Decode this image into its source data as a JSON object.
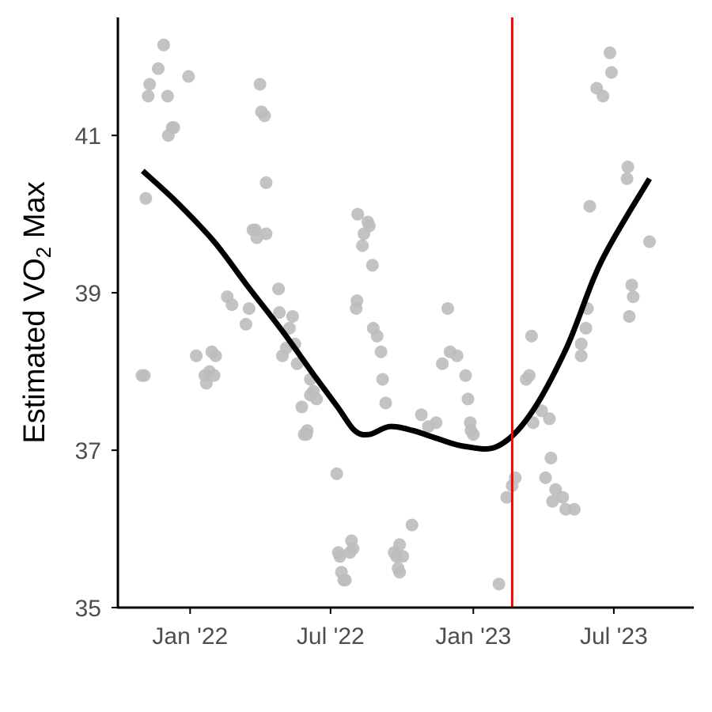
{
  "chart_data": {
    "type": "scatter",
    "title": "",
    "xlabel": "",
    "ylabel": "Estimated VO₂ Max",
    "ylabel_parts": {
      "main": "Estimated VO",
      "sub": "2",
      "tail": " Max"
    },
    "x_type": "date",
    "xlim": [
      "2021-10-01",
      "2023-10-10"
    ],
    "ylim": [
      35,
      42.5
    ],
    "x_ticks": [
      {
        "label": "Jan '22",
        "date": "2022-01-01"
      },
      {
        "label": "Jul '22",
        "date": "2022-07-01"
      },
      {
        "label": "Jan '23",
        "date": "2023-01-01"
      },
      {
        "label": "Jul '23",
        "date": "2023-07-01"
      }
    ],
    "y_ticks": [
      35,
      37,
      39,
      41
    ],
    "grid": false,
    "legend": "none",
    "colors": {
      "points": "#bdbdbd",
      "trend": "#000000",
      "marker": "#ff0000"
    },
    "vertical_line": {
      "date": "2023-02-20"
    },
    "series": [
      {
        "type": "scatter",
        "points": [
          [
            "2021-10-31",
            37.95
          ],
          [
            "2021-11-03",
            37.95
          ],
          [
            "2021-11-05",
            40.2
          ],
          [
            "2021-11-08",
            41.5
          ],
          [
            "2021-11-10",
            41.65
          ],
          [
            "2021-11-21",
            41.85
          ],
          [
            "2021-11-28",
            42.15
          ],
          [
            "2021-12-03",
            41.5
          ],
          [
            "2021-12-04",
            41.0
          ],
          [
            "2021-12-09",
            41.1
          ],
          [
            "2021-12-11",
            41.1
          ],
          [
            "2021-12-30",
            41.75
          ],
          [
            "2022-01-09",
            38.2
          ],
          [
            "2022-01-20",
            37.95
          ],
          [
            "2022-01-22",
            37.85
          ],
          [
            "2022-01-26",
            38.0
          ],
          [
            "2022-01-29",
            38.25
          ],
          [
            "2022-02-01",
            37.95
          ],
          [
            "2022-02-03",
            38.2
          ],
          [
            "2022-02-18",
            38.95
          ],
          [
            "2022-02-24",
            38.85
          ],
          [
            "2022-03-14",
            38.6
          ],
          [
            "2022-03-18",
            38.8
          ],
          [
            "2022-03-23",
            39.8
          ],
          [
            "2022-03-26",
            39.8
          ],
          [
            "2022-03-28",
            39.7
          ],
          [
            "2022-04-01",
            41.65
          ],
          [
            "2022-04-03",
            41.3
          ],
          [
            "2022-04-07",
            41.25
          ],
          [
            "2022-04-09",
            40.4
          ],
          [
            "2022-04-09",
            39.75
          ],
          [
            "2022-04-25",
            39.05
          ],
          [
            "2022-04-26",
            38.75
          ],
          [
            "2022-04-30",
            38.2
          ],
          [
            "2022-05-05",
            38.3
          ],
          [
            "2022-05-09",
            38.55
          ],
          [
            "2022-05-13",
            38.7
          ],
          [
            "2022-05-16",
            38.35
          ],
          [
            "2022-05-19",
            38.1
          ],
          [
            "2022-05-25",
            37.55
          ],
          [
            "2022-05-28",
            37.2
          ],
          [
            "2022-05-31",
            37.2
          ],
          [
            "2022-06-01",
            37.25
          ],
          [
            "2022-06-05",
            37.9
          ],
          [
            "2022-06-05",
            37.7
          ],
          [
            "2022-06-09",
            37.75
          ],
          [
            "2022-06-13",
            37.65
          ],
          [
            "2022-07-09",
            36.7
          ],
          [
            "2022-07-11",
            35.7
          ],
          [
            "2022-07-13",
            35.65
          ],
          [
            "2022-07-15",
            35.45
          ],
          [
            "2022-07-18",
            35.35
          ],
          [
            "2022-07-20",
            35.35
          ],
          [
            "2022-07-26",
            35.7
          ],
          [
            "2022-07-28",
            35.85
          ],
          [
            "2022-07-30",
            35.75
          ],
          [
            "2022-08-03",
            38.8
          ],
          [
            "2022-08-04",
            38.9
          ],
          [
            "2022-08-05",
            40.0
          ],
          [
            "2022-08-11",
            39.6
          ],
          [
            "2022-08-13",
            39.75
          ],
          [
            "2022-08-18",
            39.9
          ],
          [
            "2022-08-20",
            39.85
          ],
          [
            "2022-08-24",
            39.35
          ],
          [
            "2022-08-25",
            38.55
          ],
          [
            "2022-08-30",
            38.45
          ],
          [
            "2022-09-04",
            38.25
          ],
          [
            "2022-09-06",
            37.9
          ],
          [
            "2022-09-10",
            37.6
          ],
          [
            "2022-09-21",
            35.7
          ],
          [
            "2022-09-24",
            35.65
          ],
          [
            "2022-09-28",
            35.8
          ],
          [
            "2022-09-28",
            35.45
          ],
          [
            "2022-10-02",
            35.65
          ],
          [
            "2022-09-26",
            35.5
          ],
          [
            "2022-10-14",
            36.05
          ],
          [
            "2022-10-26",
            37.45
          ],
          [
            "2022-11-04",
            37.3
          ],
          [
            "2022-11-14",
            37.35
          ],
          [
            "2022-11-22",
            38.1
          ],
          [
            "2022-11-29",
            38.8
          ],
          [
            "2022-12-02",
            38.25
          ],
          [
            "2022-12-11",
            38.2
          ],
          [
            "2022-12-22",
            37.95
          ],
          [
            "2022-12-25",
            37.65
          ],
          [
            "2022-12-28",
            37.35
          ],
          [
            "2022-12-29",
            37.25
          ],
          [
            "2023-01-01",
            37.2
          ],
          [
            "2023-02-03",
            35.3
          ],
          [
            "2023-02-13",
            36.4
          ],
          [
            "2023-02-20",
            36.55
          ],
          [
            "2023-02-24",
            36.65
          ],
          [
            "2023-03-10",
            37.9
          ],
          [
            "2023-03-14",
            37.95
          ],
          [
            "2023-03-17",
            38.45
          ],
          [
            "2023-03-19",
            37.35
          ],
          [
            "2023-03-30",
            37.5
          ],
          [
            "2023-04-04",
            36.65
          ],
          [
            "2023-04-09",
            37.4
          ],
          [
            "2023-04-11",
            36.9
          ],
          [
            "2023-04-13",
            36.35
          ],
          [
            "2023-04-17",
            36.5
          ],
          [
            "2023-04-26",
            36.4
          ],
          [
            "2023-04-30",
            36.25
          ],
          [
            "2023-05-11",
            36.25
          ],
          [
            "2023-05-20",
            38.2
          ],
          [
            "2023-05-20",
            38.35
          ],
          [
            "2023-05-26",
            38.55
          ],
          [
            "2023-05-28",
            38.8
          ],
          [
            "2023-05-31",
            40.1
          ],
          [
            "2023-06-09",
            41.6
          ],
          [
            "2023-06-17",
            41.5
          ],
          [
            "2023-06-26",
            42.05
          ],
          [
            "2023-06-28",
            41.8
          ],
          [
            "2023-07-18",
            40.45
          ],
          [
            "2023-07-19",
            40.6
          ],
          [
            "2023-07-21",
            38.7
          ],
          [
            "2023-07-24",
            39.1
          ],
          [
            "2023-07-26",
            38.95
          ],
          [
            "2023-08-16",
            39.65
          ]
        ]
      },
      {
        "type": "line",
        "points": [
          [
            "2021-11-01",
            40.55
          ],
          [
            "2021-12-15",
            40.15
          ],
          [
            "2022-02-01",
            39.65
          ],
          [
            "2022-03-15",
            39.1
          ],
          [
            "2022-05-01",
            38.5
          ],
          [
            "2022-06-10",
            37.95
          ],
          [
            "2022-07-10",
            37.55
          ],
          [
            "2022-08-01",
            37.25
          ],
          [
            "2022-08-20",
            37.2
          ],
          [
            "2022-09-15",
            37.3
          ],
          [
            "2022-10-15",
            37.25
          ],
          [
            "2022-11-15",
            37.15
          ],
          [
            "2022-12-20",
            37.05
          ],
          [
            "2023-02-01",
            37.05
          ],
          [
            "2023-03-15",
            37.45
          ],
          [
            "2023-05-01",
            38.3
          ],
          [
            "2023-06-15",
            39.4
          ],
          [
            "2023-08-16",
            40.45
          ]
        ]
      }
    ]
  }
}
